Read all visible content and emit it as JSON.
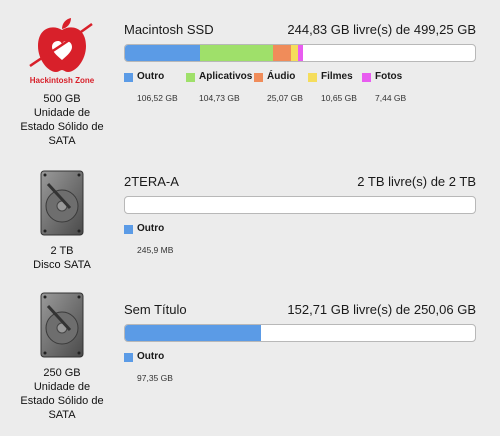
{
  "disks": [
    {
      "caption": [
        "500 GB",
        "Unidade de",
        "Estado Sólido de",
        "SATA"
      ],
      "name": "Macintosh SSD",
      "free_text": "244,83 GB livre(s) de 499,25 GB",
      "logo_text": "Hackintosh Zone",
      "bar_total": 499.25,
      "segments": [
        {
          "label": "Outro",
          "value_text": "106,52 GB",
          "value": 106.52,
          "color": "#5b9be6"
        },
        {
          "label": "Aplicativos",
          "value_text": "104,73 GB",
          "value": 104.73,
          "color": "#9fe06a"
        },
        {
          "label": "Áudio",
          "value_text": "25,07 GB",
          "value": 25.07,
          "color": "#f08c5a"
        },
        {
          "label": "Filmes",
          "value_text": "10,65 GB",
          "value": 10.65,
          "color": "#f5dd5c"
        },
        {
          "label": "Fotos",
          "value_text": "7,44 GB",
          "value": 7.44,
          "color": "#e85cf0"
        }
      ]
    },
    {
      "caption": [
        "2 TB",
        "Disco SATA"
      ],
      "name": "2TERA-A",
      "free_text": "2 TB livre(s) de 2 TB",
      "bar_total": 2000000,
      "segments": [
        {
          "label": "Outro",
          "value_text": "245,9 MB",
          "value": 245.9,
          "color": "#5b9be6"
        }
      ]
    },
    {
      "caption": [
        "250 GB",
        "Unidade de",
        "Estado Sólido de",
        "SATA"
      ],
      "name": "Sem Título",
      "free_text": "152,71 GB livre(s) de 250,06 GB",
      "bar_total": 250.06,
      "segments": [
        {
          "label": "Outro",
          "value_text": "97,35 GB",
          "value": 97.35,
          "color": "#5b9be6"
        }
      ]
    }
  ]
}
